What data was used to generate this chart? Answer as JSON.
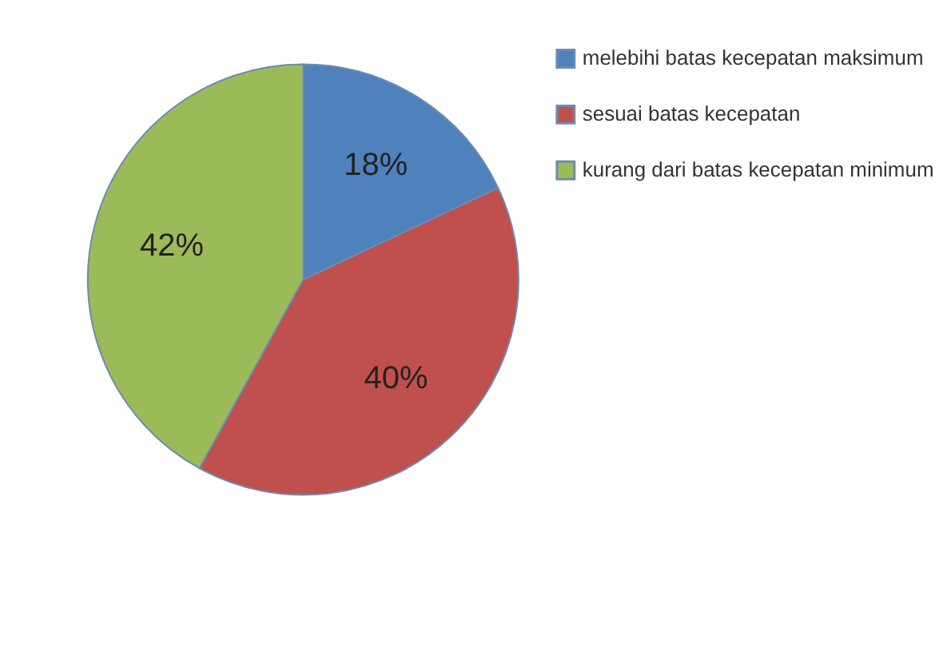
{
  "chart_data": {
    "type": "pie",
    "categories": [
      "melebihi batas kecepatan maksimum",
      "sesuai batas kecepatan",
      "kurang dari batas kecepatan minimum"
    ],
    "values": [
      18,
      40,
      42
    ],
    "colors": [
      "#4f81bd",
      "#c0504d",
      "#9bbb59"
    ],
    "value_labels": [
      "18%",
      "40%",
      "42%"
    ],
    "legend": "right"
  }
}
